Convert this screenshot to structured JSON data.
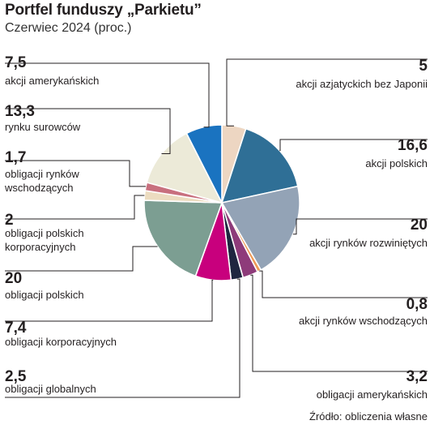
{
  "header": {
    "title": "Portfel funduszy „Parkietu”",
    "subtitle": "Czerwiec 2024 (proc.)"
  },
  "footer": {
    "source": "Źródło: obliczenia własne"
  },
  "chart_data": {
    "type": "pie",
    "title": "Portfel funduszy „Parkietu”",
    "subtitle": "Czerwiec 2024 (proc.)",
    "unit": "proc.",
    "slices": [
      {
        "value": 5,
        "value_label": "5",
        "label": "akcji azjatyckich bez Japonii",
        "color": "#edd6c2"
      },
      {
        "value": 16.6,
        "value_label": "16,6",
        "label": "akcji polskich",
        "color": "#2f6f96"
      },
      {
        "value": 20,
        "value_label": "20",
        "label": "akcji rynków rozwiniętych",
        "color": "#93a3b6"
      },
      {
        "value": 0.8,
        "value_label": "0,8",
        "label": "akcji rynków wschodzących",
        "color": "#ef9a56"
      },
      {
        "value": 3.2,
        "value_label": "3,2",
        "label": "obligacji amerykańskich",
        "color": "#8e3b7a"
      },
      {
        "value": 2.5,
        "value_label": "2,5",
        "label": "obligacji globalnych",
        "color": "#1f2640"
      },
      {
        "value": 7.4,
        "value_label": "7,4",
        "label": "obligacji korporacyjnych",
        "color": "#c8007d"
      },
      {
        "value": 20,
        "value_label": "20",
        "label": "obligacji polskich",
        "color": "#7c9e92"
      },
      {
        "value": 2,
        "value_label": "2",
        "label": "obligacji polskich korporacyjnych",
        "color": "#ecdcc0"
      },
      {
        "value": 1.7,
        "value_label": "1,7",
        "label": "obligacji rynków wschodzących",
        "color": "#c8707e"
      },
      {
        "value": 13.3,
        "value_label": "13,3",
        "label": "rynku surowców",
        "color": "#ecead8"
      },
      {
        "value": 7.5,
        "value_label": "7,5",
        "label": "akcji amerykańskich",
        "color": "#1a73c0"
      }
    ]
  }
}
